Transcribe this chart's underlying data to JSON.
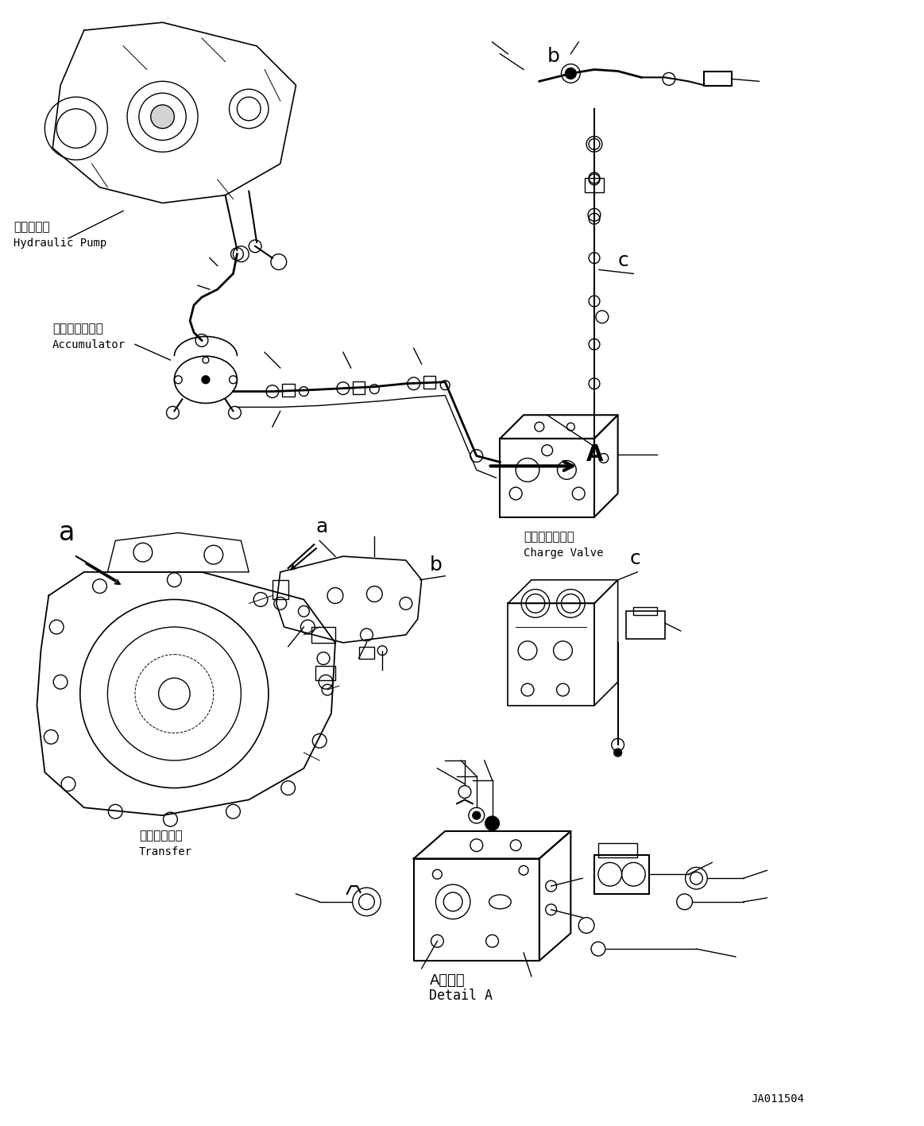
{
  "background_color": "#ffffff",
  "fig_width": 11.63,
  "fig_height": 14.17,
  "labels": {
    "hydraulic_pump_jp": "油圧ポンプ",
    "hydraulic_pump_en": "Hydraulic Pump",
    "accumulator_jp": "アキュムレータ",
    "accumulator_en": "Accumulator",
    "charge_valve_jp": "チャージバルブ",
    "charge_valve_en": "Charge Valve",
    "transfer_jp": "トランスファ",
    "transfer_en": "Transfer",
    "detail_a_jp": "A　詳細",
    "detail_a_en": "Detail A",
    "part_id": "JA011504"
  },
  "text_color": "#000000",
  "line_color": "#000000",
  "line_width": 1.0
}
